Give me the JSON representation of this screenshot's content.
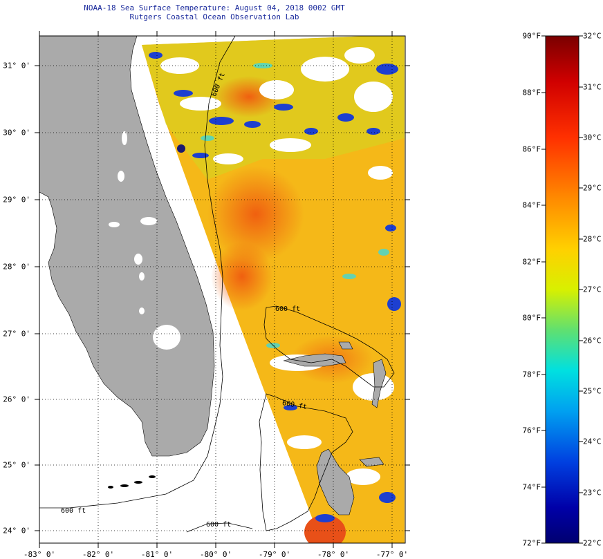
{
  "header": {
    "title": "NOAA-18 Sea Surface Temperature:  August 04, 2018 0002 GMT",
    "subtitle": "Rutgers Coastal Ocean Observation Lab"
  },
  "map": {
    "latitude_labels": [
      "31° 0'",
      "30° 0'",
      "29° 0'",
      "28° 0'",
      "27° 0'",
      "26° 0'",
      "25° 0'",
      "24° 0'"
    ],
    "longitude_labels": [
      "-83° 0'",
      "-82° 0'",
      "-81° 0'",
      "-80° 0'",
      "-79° 0'",
      "-78° 0'",
      "-77° 0'"
    ],
    "lat_range": [
      23.9,
      31.45
    ],
    "lon_range": [
      -83,
      -76.8
    ],
    "isobath_labels": [
      "600 ft",
      "600 ft",
      "600 ft",
      "600 ft",
      "600 ft"
    ],
    "colors": {
      "land": "#aaaaaa",
      "no_data": "#ffffff",
      "coast": "#000000",
      "grid": "#000000"
    }
  },
  "colorbar": {
    "fahrenheit_labels": [
      "90°F",
      "88°F",
      "86°F",
      "84°F",
      "82°F",
      "80°F",
      "78°F",
      "76°F",
      "74°F",
      "72°F"
    ],
    "celsius_labels": [
      "32°C",
      "31°C",
      "30°C",
      "29°C",
      "28°C",
      "27°C",
      "26°C",
      "25°C",
      "24°C",
      "23°C",
      "22°C"
    ],
    "fahrenheit_range": [
      72,
      90
    ],
    "celsius_range": [
      22,
      32
    ],
    "gradient": [
      "#7a0000",
      "#d00000",
      "#ff3000",
      "#ff8a00",
      "#ffd000",
      "#d8f000",
      "#60e070",
      "#00e0e0",
      "#00a0f0",
      "#0040e0",
      "#0000a8",
      "#000070"
    ]
  }
}
